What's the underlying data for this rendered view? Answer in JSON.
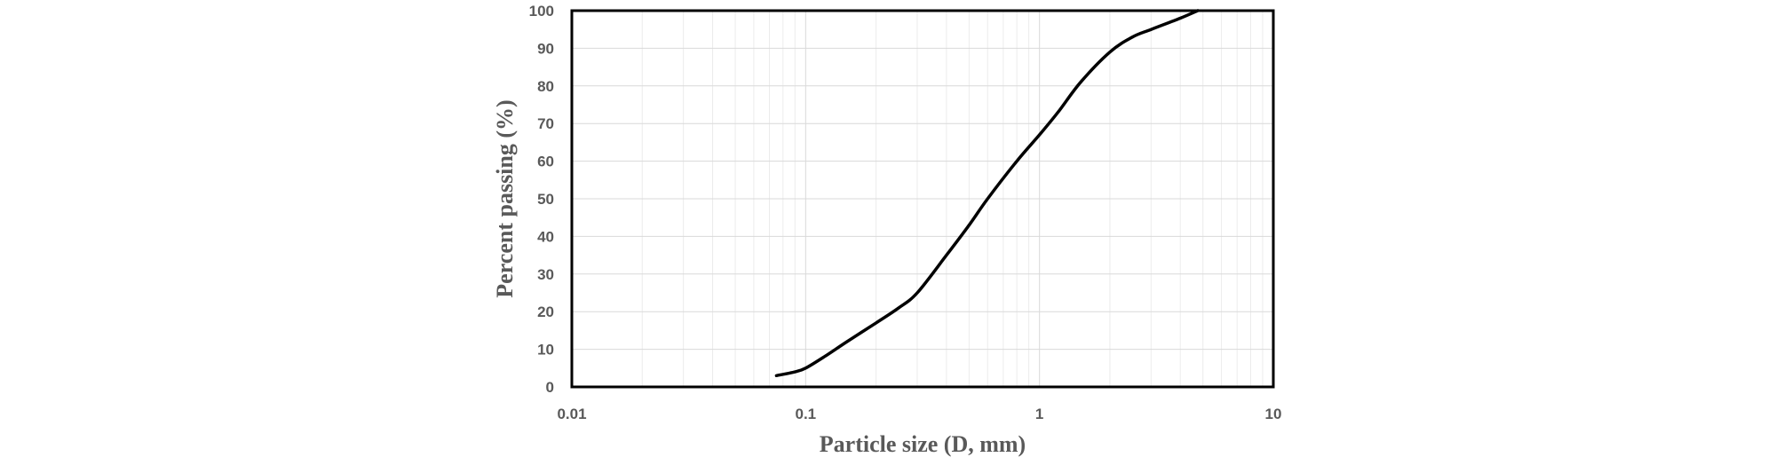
{
  "chart_data": {
    "type": "line",
    "xscale": "log",
    "xlim": [
      0.01,
      10
    ],
    "ylim": [
      0,
      100
    ],
    "xticks": [
      0.01,
      0.1,
      1,
      10
    ],
    "yticks": [
      0,
      10,
      20,
      30,
      40,
      50,
      60,
      70,
      80,
      90,
      100
    ],
    "xtick_labels": [
      "0.01",
      "0.1",
      "1",
      "10"
    ],
    "ytick_labels": [
      "0",
      "10",
      "20",
      "30",
      "40",
      "50",
      "60",
      "70",
      "80",
      "90",
      "100"
    ],
    "xlabel": "Particle size (D, mm)",
    "ylabel": "Percent passing  (%)",
    "grid": true,
    "legend": "none",
    "series": [
      {
        "color": "#000000",
        "x": [
          0.075,
          0.09,
          0.1,
          0.12,
          0.15,
          0.2,
          0.25,
          0.3,
          0.4,
          0.5,
          0.6,
          0.8,
          1.0,
          1.2,
          1.5,
          2.0,
          2.5,
          3.0,
          4.0,
          4.75
        ],
        "y": [
          3,
          4,
          5,
          8,
          12,
          17,
          21,
          25,
          35,
          43,
          50,
          60,
          67,
          73,
          81,
          89,
          93,
          95,
          98,
          100
        ]
      }
    ]
  }
}
